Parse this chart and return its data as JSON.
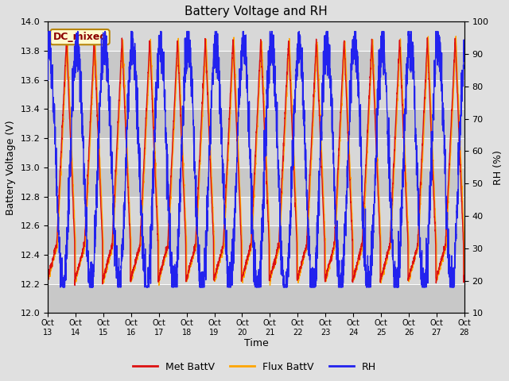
{
  "title": "Battery Voltage and RH",
  "xlabel": "Time",
  "ylabel_left": "Battery Voltage (V)",
  "ylabel_right": "RH (%)",
  "annotation": "DC_mixed",
  "annotation_color": "#8B0000",
  "annotation_bg": "#FFFACD",
  "annotation_border": "#B8860B",
  "ylim_left": [
    12.0,
    14.0
  ],
  "ylim_right": [
    10,
    100
  ],
  "xtick_labels": [
    "Oct 13",
    "Oct 14",
    "Oct 15",
    "Oct 16",
    "Oct 17",
    "Oct 18",
    "Oct 19",
    "Oct 20",
    "Oct 21",
    "Oct 22",
    "Oct 23",
    "Oct 24",
    "Oct 25",
    "Oct 26",
    "Oct 27",
    "Oct 28"
  ],
  "met_battv_color": "#DD1111",
  "flux_battv_color": "#FFA500",
  "rh_color": "#2222EE",
  "fig_bg_color": "#E0E0E0",
  "plot_bg_color": "#C8C8C8",
  "band_light_color": "#D8D8D8",
  "grid_color": "#FFFFFF",
  "legend_labels": [
    "Met BattV",
    "Flux BattV",
    "RH"
  ],
  "v_min": 12.22,
  "v_max_met": 13.88,
  "v_max_flux": 13.88,
  "rh_min": 20,
  "rh_max": 95,
  "linewidth": 1.0
}
